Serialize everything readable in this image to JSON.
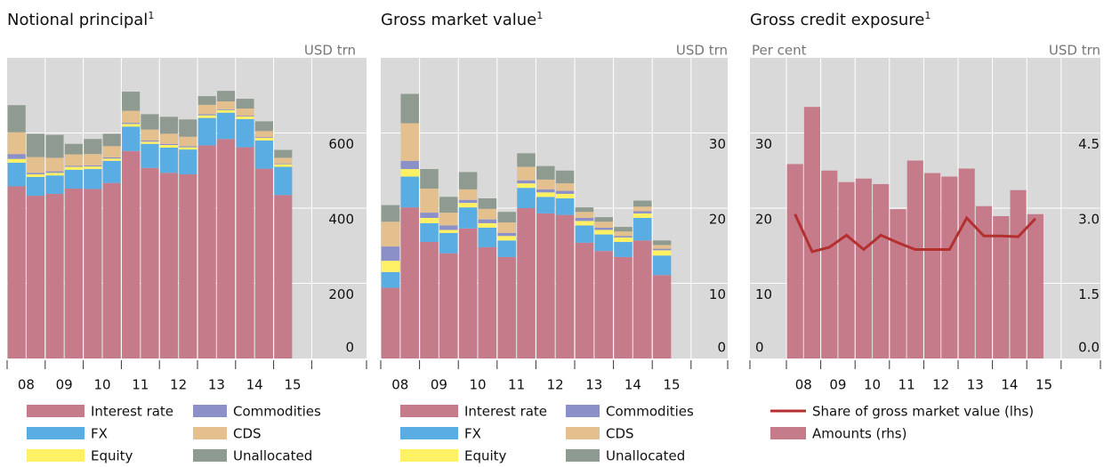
{
  "chart_data": [
    {
      "type": "stacked_bar",
      "title": "Notional principal",
      "title_superscript": "1",
      "y_label": "USD trn",
      "categories": [
        "08",
        null,
        "09",
        null,
        "10",
        null,
        "11",
        null,
        "12",
        null,
        "13",
        null,
        "14",
        null,
        "15"
      ],
      "ylim": [
        0,
        800
      ],
      "yticks": [
        0,
        200,
        400,
        600
      ],
      "grid": true,
      "series": [
        {
          "name": "Interest rate",
          "color": "#c67b8b",
          "values": [
            458,
            433,
            438,
            452,
            451,
            467,
            552,
            507,
            494,
            490,
            567,
            584,
            562,
            505,
            435
          ]
        },
        {
          "name": "FX",
          "color": "#5aade2",
          "values": [
            63,
            50,
            49,
            50,
            53,
            59,
            65,
            64,
            67,
            66,
            73,
            70,
            75,
            75,
            75
          ]
        },
        {
          "name": "Equity",
          "color": "#fff064",
          "values": [
            10,
            7,
            7,
            8,
            7,
            6,
            7,
            6,
            7,
            6,
            7,
            7,
            7,
            7,
            7
          ]
        },
        {
          "name": "Commodities",
          "color": "#8b90c8",
          "values": [
            13,
            4,
            4,
            3,
            3,
            3,
            3,
            3,
            3,
            3,
            3,
            2,
            2,
            2,
            2
          ]
        },
        {
          "name": "CDS",
          "color": "#e4c08e",
          "values": [
            58,
            42,
            36,
            30,
            30,
            30,
            32,
            29,
            27,
            25,
            25,
            21,
            19,
            16,
            15
          ]
        },
        {
          "name": "Unallocated",
          "color": "#8f9a90",
          "values": [
            72,
            62,
            61,
            28,
            40,
            33,
            51,
            41,
            45,
            46,
            23,
            28,
            26,
            26,
            21
          ]
        }
      ]
    },
    {
      "type": "stacked_bar",
      "title": "Gross market value",
      "title_superscript": "1",
      "y_label": "USD trn",
      "categories": [
        "08",
        null,
        "09",
        null,
        "10",
        null,
        "11",
        null,
        "12",
        null,
        "13",
        null,
        "14",
        null,
        "15"
      ],
      "ylim": [
        0,
        40
      ],
      "yticks": [
        0,
        10,
        20,
        30
      ],
      "grid": true,
      "series": [
        {
          "name": "Interest rate",
          "color": "#c67b8b",
          "values": [
            9.4,
            20.1,
            15.5,
            14.0,
            17.3,
            14.8,
            13.5,
            20.0,
            19.3,
            19.1,
            15.4,
            14.3,
            13.5,
            15.7,
            11.1
          ]
        },
        {
          "name": "FX",
          "color": "#5aade2",
          "values": [
            2.1,
            4.1,
            2.5,
            2.7,
            2.8,
            2.6,
            2.2,
            2.7,
            2.2,
            2.2,
            2.3,
            2.2,
            2.0,
            3.0,
            2.6
          ]
        },
        {
          "name": "Equity",
          "color": "#fff064",
          "values": [
            1.5,
            1.0,
            0.7,
            0.4,
            0.6,
            0.6,
            0.6,
            0.6,
            0.6,
            0.6,
            0.6,
            0.6,
            0.6,
            0.6,
            0.7
          ]
        },
        {
          "name": "Commodities",
          "color": "#8b90c8",
          "values": [
            1.9,
            1.1,
            0.7,
            0.6,
            0.4,
            0.5,
            0.4,
            0.4,
            0.4,
            0.4,
            0.4,
            0.3,
            0.2,
            0.3,
            0.2
          ]
        },
        {
          "name": "CDS",
          "color": "#e4c08e",
          "values": [
            3.3,
            5.0,
            3.2,
            1.7,
            1.4,
            1.4,
            1.4,
            1.8,
            1.3,
            1.0,
            0.8,
            0.8,
            0.6,
            0.6,
            0.5
          ]
        },
        {
          "name": "Unallocated",
          "color": "#8f9a90",
          "values": [
            2.2,
            3.9,
            2.6,
            2.1,
            2.3,
            1.4,
            1.4,
            1.8,
            1.8,
            1.7,
            0.6,
            0.6,
            0.6,
            0.8,
            0.6
          ]
        }
      ]
    },
    {
      "type": "combo",
      "title": "Gross credit exposure",
      "title_superscript": "1",
      "y_label": "Per cent",
      "y2_label": "USD trn",
      "categories": [
        "08",
        null,
        "09",
        null,
        "10",
        null,
        "11",
        null,
        "12",
        null,
        "13",
        null,
        "14",
        null,
        "15"
      ],
      "ylim": [
        0,
        40
      ],
      "yticks": [
        0,
        10,
        20,
        30
      ],
      "y2lim": [
        0,
        6
      ],
      "y2ticks": [
        {
          "value": 0,
          "label": "0.0"
        },
        1.5,
        {
          "value": 3,
          "label": "3.0"
        },
        4.5
      ],
      "grid": true,
      "series": [
        {
          "name": "Share of gross market value (lhs)",
          "type": "line",
          "color": "#b3302f",
          "values": [
            19.2,
            14.2,
            14.8,
            16.4,
            14.5,
            16.4,
            15.4,
            14.5,
            14.5,
            14.5,
            18.7,
            16.3,
            16.3,
            16.2,
            18.6
          ]
        },
        {
          "name": "Amounts (rhs)",
          "type": "bar",
          "axis": "y2",
          "color": "#c67b8b",
          "values": [
            3.88,
            5.02,
            3.75,
            3.52,
            3.59,
            3.48,
            2.98,
            3.95,
            3.7,
            3.63,
            3.79,
            3.04,
            2.84,
            3.36,
            2.88
          ]
        }
      ]
    }
  ]
}
